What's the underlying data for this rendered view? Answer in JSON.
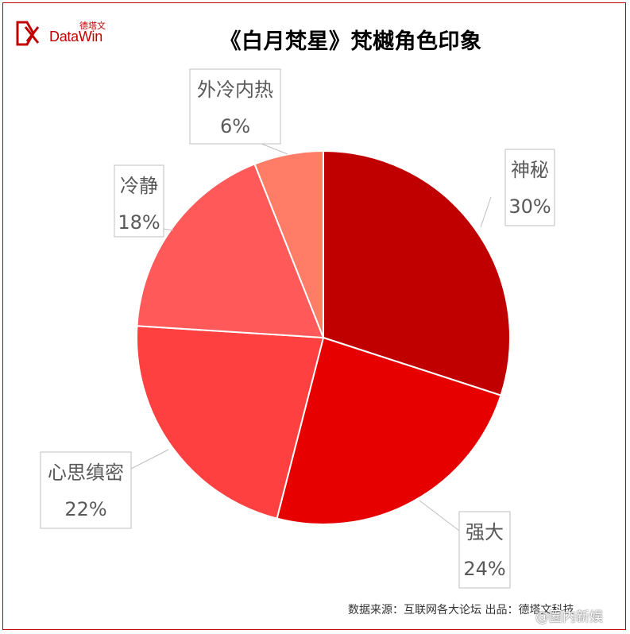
{
  "title": "《白月梵星》梵樾角色印象",
  "logo": {
    "cn": "德塔文",
    "en": "DataWin"
  },
  "source": "数据来源：互联网各大论坛    出品：德塔文科技",
  "watermark": "@圈内新娱",
  "colors": {
    "border": "#c00000",
    "label_text": "#595959",
    "label_border": "#bfbfbf"
  },
  "chart_data": {
    "type": "pie",
    "title": "《白月梵星》梵樾角色印象",
    "slices": [
      {
        "name": "神秘",
        "value": 30,
        "label": "30%",
        "color": "#c00000"
      },
      {
        "name": "强大",
        "value": 24,
        "label": "24%",
        "color": "#e60000"
      },
      {
        "name": "心思缜密",
        "value": 22,
        "label": "22%",
        "color": "#ff4040"
      },
      {
        "name": "冷静",
        "value": 18,
        "label": "18%",
        "color": "#ff5959"
      },
      {
        "name": "外冷内热",
        "value": 6,
        "label": "6%",
        "color": "#ff7c66"
      }
    ],
    "start_angle_deg": 0,
    "direction": "clockwise",
    "legend": "none"
  }
}
